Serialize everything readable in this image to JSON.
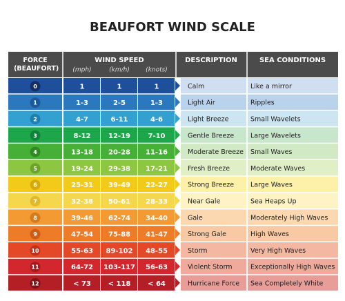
{
  "header": {
    "title": "BEAUFORT WIND SCALE"
  },
  "table": {
    "columns": {
      "force": "FORCE (BEAUFORT)",
      "wind_speed": "WIND SPEED",
      "units": [
        "(mph)",
        "(km/h)",
        "(knots)"
      ],
      "description": "DESCRIPTION",
      "sea": "SEA CONDITIONS"
    },
    "rows": [
      [
        0,
        "1",
        "1",
        "1",
        "Calm",
        "Like a mirror"
      ],
      [
        1,
        "1-3",
        "2-5",
        "1-3",
        "Light Air",
        "Ripples"
      ],
      [
        2,
        "4-7",
        "6-11",
        "4-6",
        "Light Breeze",
        "Small Wavelets"
      ],
      [
        3,
        "8-12",
        "12-19",
        "7-10",
        "Gentle Breeze",
        "Large Wavelets"
      ],
      [
        4,
        "13-18",
        "20-28",
        "11-16",
        "Moderate Breeze",
        "Small Waves"
      ],
      [
        5,
        "19-24",
        "29-38",
        "17-21",
        "Fresh Breeze",
        "Moderate Waves"
      ],
      [
        6,
        "25-31",
        "39-49",
        "22-27",
        "Strong Breeze",
        "Large Waves"
      ],
      [
        7,
        "32-38",
        "50-61",
        "28-33",
        "Near Gale",
        "Sea Heaps Up"
      ],
      [
        8,
        "39-46",
        "62-74",
        "34-40",
        "Gale",
        "Moderately High Waves"
      ],
      [
        9,
        "47-54",
        "75-88",
        "41-47",
        "Strong Gale",
        "High Waves"
      ],
      [
        10,
        "55-63",
        "89-102",
        "48-55",
        "Storm",
        "Very High Waves"
      ],
      [
        11,
        "64-72",
        "103-117",
        "56-63",
        "Violent Storm",
        "Exceptionally High Waves"
      ],
      [
        12,
        "< 73",
        "< 118",
        "< 64",
        "Hurricane Force",
        "Sea Completely White"
      ]
    ]
  }
}
